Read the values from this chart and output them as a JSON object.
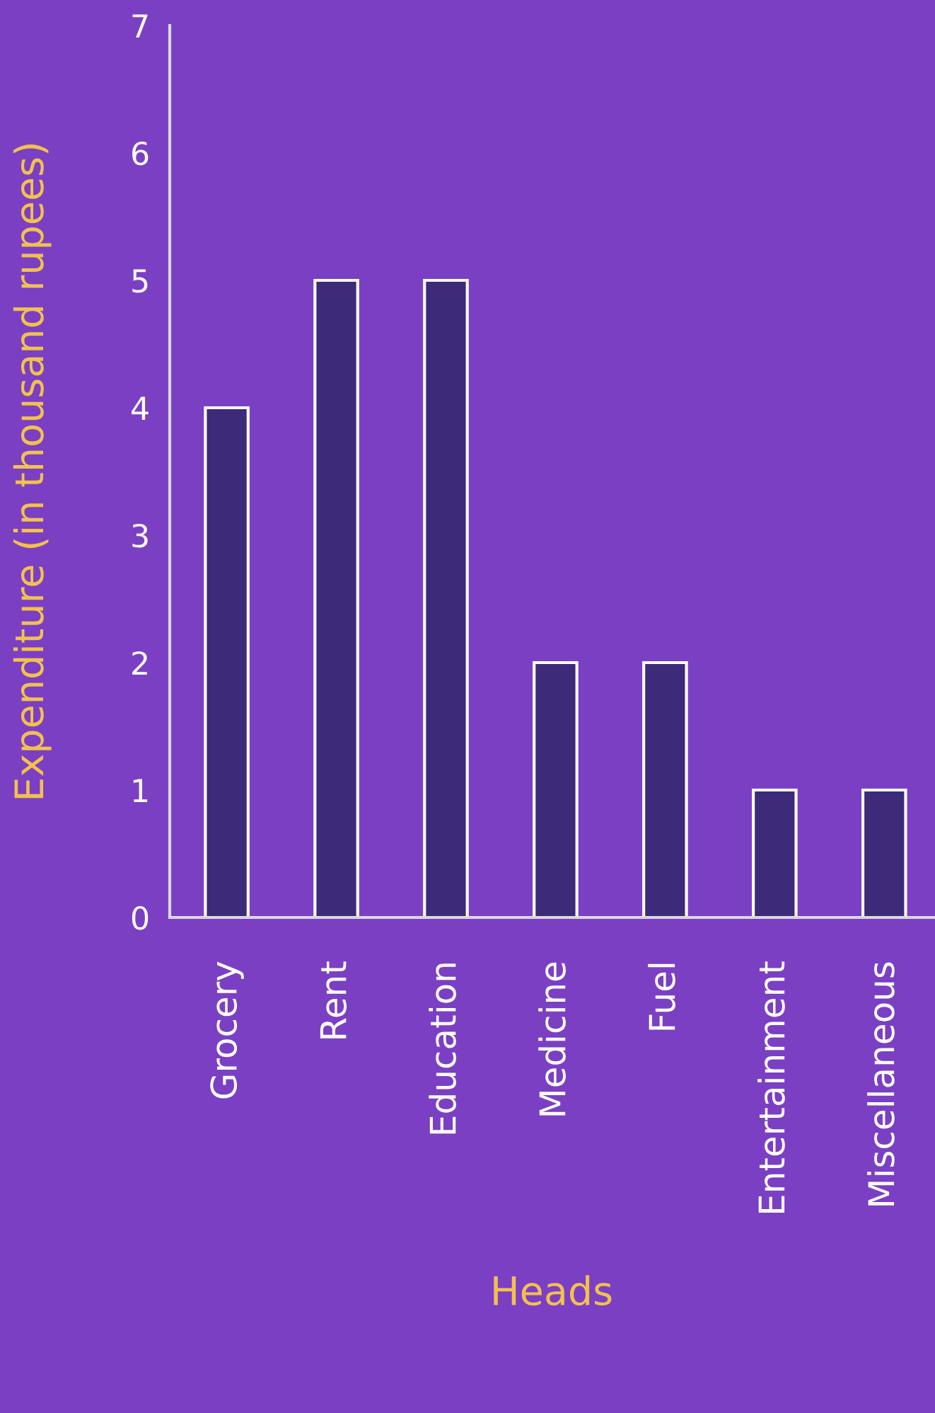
{
  "chart_data": {
    "type": "bar",
    "xlabel": "Heads",
    "ylabel": "Expenditure (in thousand rupees)",
    "categories": [
      "Grocery",
      "Rent",
      "Education",
      "Medicine",
      "Fuel",
      "Entertainment",
      "Miscellaneous"
    ],
    "values": [
      4,
      5,
      5,
      2,
      2,
      1,
      1
    ],
    "color": "#3d2a78",
    "ylim": [
      0,
      7
    ],
    "yticks": [
      0,
      1,
      2,
      3,
      4,
      5,
      6,
      7
    ],
    "grid": false,
    "legend": false
  }
}
